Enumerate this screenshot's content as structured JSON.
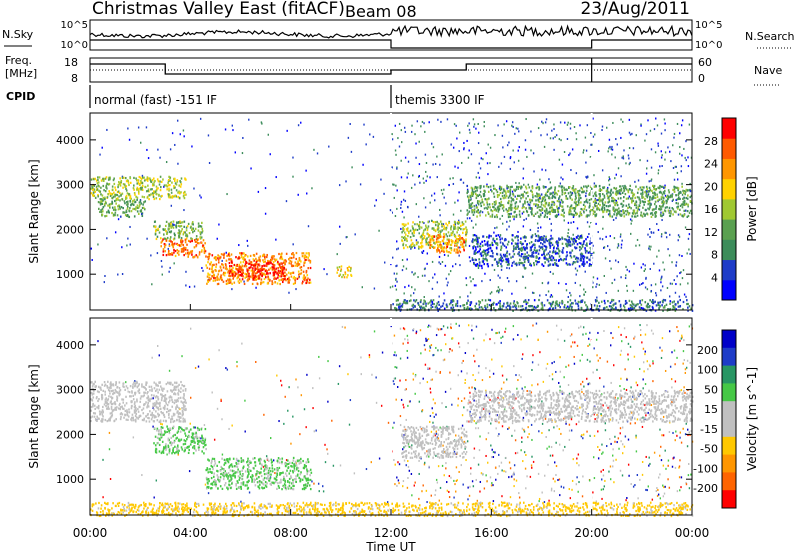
{
  "header": {
    "title": "Christmas Valley East (fitACF)",
    "beam": "Beam 08",
    "date": "23/Aug/2011"
  },
  "status": {
    "nsky_label": "N.Sky",
    "nsearch_label": "N.Search",
    "noise_ticks": [
      "10^5",
      "10^0"
    ],
    "freq_label_1": "Freq.",
    "freq_label_2": "[MHz]",
    "freq_ticks": [
      "18",
      "8"
    ],
    "nave_label": "Nave",
    "nave_ticks": [
      "60",
      "0"
    ],
    "cpid_label": "CPID",
    "modes": [
      {
        "label": "normal (fast) -151 IF",
        "start_hour": 0
      },
      {
        "label": "themis 3300 IF",
        "start_hour": 12
      }
    ]
  },
  "colors": {
    "power_scale": [
      "#0000ff",
      "#1e3cc8",
      "#3c8c5a",
      "#5aa050",
      "#a0c832",
      "#ffd200",
      "#ff9600",
      "#ff5a00",
      "#ff0000"
    ],
    "velocity_scale": [
      "#ff0000",
      "#ff6400",
      "#ff9600",
      "#ffc800",
      "#c0c0c0",
      "#c0c0c0",
      "#46c846",
      "#289664",
      "#1e3cc8",
      "#0000c8"
    ]
  },
  "chart_data": [
    {
      "type": "heatmap",
      "panel": "power",
      "ylabel": "Slant Range [km]",
      "xlabel": "Time UT",
      "x_tick_labels": [
        "00:00",
        "04:00",
        "08:00",
        "12:00",
        "16:00",
        "20:00",
        "00:00"
      ],
      "x_tick_hours": [
        0,
        4,
        8,
        12,
        16,
        20,
        24
      ],
      "xlim": [
        0,
        24
      ],
      "ylim": [
        200,
        4600
      ],
      "y_ticks": [
        1000,
        2000,
        3000,
        4000
      ],
      "colorbar_label": "Power [dB]",
      "colorbar_ticks": [
        4,
        8,
        12,
        16,
        20,
        24,
        28
      ],
      "colorbar_range": [
        0,
        32
      ],
      "echo_regions": [
        {
          "t0": 0.0,
          "t1": 3.8,
          "r0": 2700,
          "r1": 3200,
          "value": 16
        },
        {
          "t0": 0.3,
          "t1": 2.2,
          "r0": 2300,
          "r1": 2700,
          "value": 12
        },
        {
          "t0": 2.5,
          "t1": 4.5,
          "r0": 1800,
          "r1": 2200,
          "value": 14
        },
        {
          "t0": 2.8,
          "t1": 4.6,
          "r0": 1400,
          "r1": 1800,
          "value": 26
        },
        {
          "t0": 4.6,
          "t1": 8.8,
          "r0": 800,
          "r1": 1500,
          "value": 24
        },
        {
          "t0": 5.5,
          "t1": 7.8,
          "r0": 900,
          "r1": 1300,
          "value": 30
        },
        {
          "t0": 9.8,
          "t1": 10.4,
          "r0": 950,
          "r1": 1200,
          "value": 20
        },
        {
          "t0": 12.4,
          "t1": 15.0,
          "r0": 1600,
          "r1": 2200,
          "value": 16
        },
        {
          "t0": 13.5,
          "t1": 14.9,
          "r0": 1500,
          "r1": 1900,
          "value": 24
        },
        {
          "t0": 15.0,
          "t1": 24.0,
          "r0": 2300,
          "r1": 3000,
          "value": 12
        },
        {
          "t0": 15.2,
          "t1": 20.0,
          "r0": 1200,
          "r1": 1900,
          "value": 6
        },
        {
          "t0": 12.0,
          "t1": 24.0,
          "r0": 200,
          "r1": 450,
          "value": 8
        }
      ]
    },
    {
      "type": "heatmap",
      "panel": "velocity",
      "ylabel": "Slant Range [km]",
      "xlabel": "Time UT",
      "x_tick_labels": [
        "00:00",
        "04:00",
        "08:00",
        "12:00",
        "16:00",
        "20:00",
        "00:00"
      ],
      "x_tick_hours": [
        0,
        4,
        8,
        12,
        16,
        20,
        24
      ],
      "xlim": [
        0,
        24
      ],
      "ylim": [
        200,
        4600
      ],
      "y_ticks": [
        1000,
        2000,
        3000,
        4000
      ],
      "colorbar_label": "Velocity [m s^-1]",
      "colorbar_ticks": [
        200,
        100,
        50,
        15,
        -15,
        -50,
        -100,
        -200
      ],
      "echo_regions": [
        {
          "t0": 0.0,
          "t1": 3.8,
          "r0": 2300,
          "r1": 3200,
          "value": 0
        },
        {
          "t0": 2.5,
          "t1": 4.6,
          "r0": 1600,
          "r1": 2200,
          "value": 60
        },
        {
          "t0": 4.6,
          "t1": 8.8,
          "r0": 800,
          "r1": 1500,
          "value": 60
        },
        {
          "t0": 12.4,
          "t1": 15.0,
          "r0": 1500,
          "r1": 2200,
          "value": 0
        },
        {
          "t0": 15.0,
          "t1": 24.0,
          "r0": 2300,
          "r1": 3000,
          "value": 0
        },
        {
          "t0": 0.0,
          "t1": 24.0,
          "r0": 200,
          "r1": 500,
          "value": -70
        }
      ]
    }
  ]
}
